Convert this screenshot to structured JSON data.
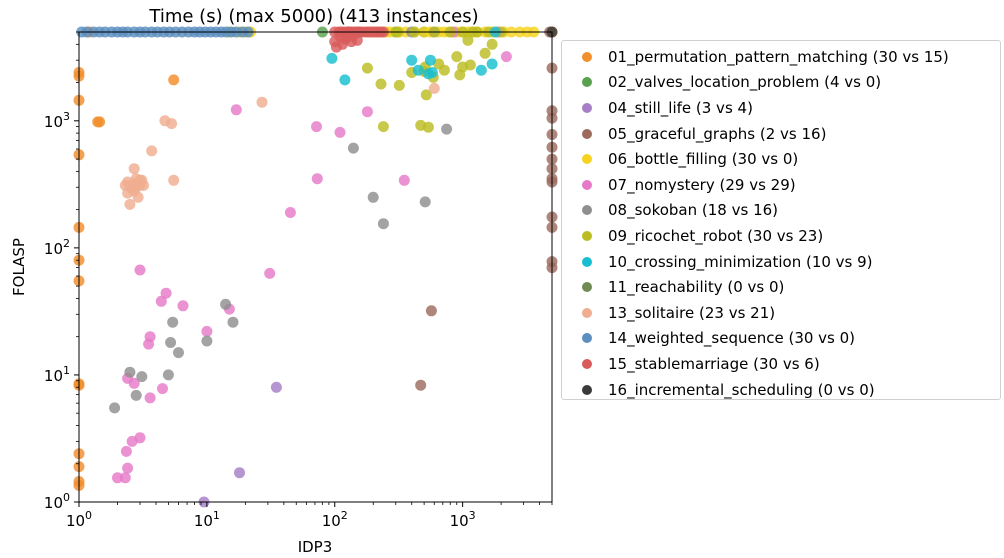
{
  "chart_data": {
    "type": "scatter",
    "title": "Time (s) (max 5000) (413 instances)",
    "xlabel": "IDP3",
    "ylabel": "FOLASP",
    "xscale": "log",
    "yscale": "log",
    "xlim": [
      1,
      5000
    ],
    "ylim": [
      1,
      5000
    ],
    "xticks": [
      {
        "value": 1,
        "base": "10",
        "exp": "0"
      },
      {
        "value": 10,
        "base": "10",
        "exp": "1"
      },
      {
        "value": 100,
        "base": "10",
        "exp": "2"
      },
      {
        "value": 1000,
        "base": "10",
        "exp": "3"
      }
    ],
    "yticks": [
      {
        "value": 1,
        "base": "10",
        "exp": "0"
      },
      {
        "value": 10,
        "base": "10",
        "exp": "1"
      },
      {
        "value": 100,
        "base": "10",
        "exp": "2"
      },
      {
        "value": 1000,
        "base": "10",
        "exp": "3"
      }
    ],
    "legend_position": "outside-right",
    "series": [
      {
        "name": "01_permutation_pattern_matching (30 vs 15)",
        "color": "#f28e2b",
        "points": [
          [
            1,
            2400
          ],
          [
            1,
            2250
          ],
          [
            1,
            1450
          ],
          [
            1,
            540
          ],
          [
            1,
            145
          ],
          [
            1,
            80
          ],
          [
            1,
            55
          ],
          [
            1,
            8.5
          ],
          [
            1,
            8.3
          ],
          [
            1,
            2.4
          ],
          [
            1,
            1.9
          ],
          [
            1,
            1.45
          ],
          [
            1,
            1.35
          ],
          [
            1.2,
            5000
          ],
          [
            1.4,
            980
          ],
          [
            1.45,
            980
          ],
          [
            5.5,
            2100
          ],
          [
            5000,
            5000
          ]
        ]
      },
      {
        "name": "02_valves_location_problem (4 vs 0)",
        "color": "#59a14f",
        "points": [
          [
            80,
            5000
          ],
          [
            130,
            5000
          ],
          [
            300,
            5000
          ],
          [
            500,
            5000
          ]
        ]
      },
      {
        "name": "04_still_life (3 vs 4)",
        "color": "#a67fc7",
        "points": [
          [
            9.5,
            1.0
          ],
          [
            18,
            1.7
          ],
          [
            35,
            8.0
          ]
        ]
      },
      {
        "name": "05_graceful_graphs (2 vs 16)",
        "color": "#9c6b5e",
        "points": [
          [
            470,
            8.3
          ],
          [
            570,
            32
          ],
          [
            5000,
            2600
          ],
          [
            5000,
            1200
          ],
          [
            5000,
            1050
          ],
          [
            5000,
            780
          ],
          [
            5000,
            620
          ],
          [
            5000,
            500
          ],
          [
            5000,
            420
          ],
          [
            5000,
            350
          ],
          [
            5000,
            330
          ],
          [
            5000,
            175
          ],
          [
            5000,
            145
          ],
          [
            5000,
            78
          ],
          [
            5000,
            70
          ],
          [
            4800,
            5000
          ]
        ]
      },
      {
        "name": "06_bottle_filling (30 vs 0)",
        "color": "#f5d31f",
        "points": [
          [
            15,
            5000
          ],
          [
            18,
            5000
          ],
          [
            20,
            5000
          ],
          [
            22,
            5000
          ],
          [
            150,
            5000
          ],
          [
            180,
            5000
          ],
          [
            210,
            5000
          ],
          [
            250,
            5000
          ],
          [
            270,
            5000
          ],
          [
            320,
            5000
          ],
          [
            360,
            5000
          ],
          [
            420,
            5000
          ],
          [
            500,
            5000
          ],
          [
            560,
            5000
          ],
          [
            650,
            5000
          ],
          [
            720,
            5000
          ],
          [
            800,
            5000
          ],
          [
            900,
            5000
          ],
          [
            1000,
            5000
          ],
          [
            1100,
            5000
          ],
          [
            1200,
            5000
          ],
          [
            1300,
            5000
          ],
          [
            1500,
            5000
          ],
          [
            1700,
            5000
          ],
          [
            1900,
            5000
          ],
          [
            2100,
            5000
          ],
          [
            2400,
            5000
          ],
          [
            2800,
            5000
          ],
          [
            3200,
            5000
          ],
          [
            3600,
            5000
          ]
        ]
      },
      {
        "name": "07_nomystery (29 vs 29)",
        "color": "#e67ac8",
        "points": [
          [
            2,
            1.55
          ],
          [
            2.3,
            1.55
          ],
          [
            2.4,
            1.85
          ],
          [
            2.35,
            2.5
          ],
          [
            2.6,
            3.0
          ],
          [
            3,
            3.2
          ],
          [
            2.4,
            9.4
          ],
          [
            2.7,
            8.6
          ],
          [
            3,
            67
          ],
          [
            3.6,
            20
          ],
          [
            3.5,
            17.5
          ],
          [
            3.6,
            6.6
          ],
          [
            4.5,
            7.8
          ],
          [
            4.4,
            38
          ],
          [
            4.8,
            44
          ],
          [
            6.5,
            35
          ],
          [
            10,
            22
          ],
          [
            15,
            33
          ],
          [
            31,
            63
          ],
          [
            45,
            190
          ],
          [
            17,
            1220
          ],
          [
            73,
            350
          ],
          [
            72,
            900
          ],
          [
            110,
            810
          ],
          [
            180,
            1180
          ],
          [
            350,
            340
          ],
          [
            850,
            5000
          ],
          [
            1900,
            5000
          ],
          [
            2200,
            3200
          ]
        ]
      },
      {
        "name": "08_sokoban (18 vs 16)",
        "color": "#8f8f8f",
        "points": [
          [
            1.9,
            5.5
          ],
          [
            2.5,
            10.5
          ],
          [
            2.8,
            6.9
          ],
          [
            3.1,
            9.7
          ],
          [
            5,
            10
          ],
          [
            5.2,
            18
          ],
          [
            5.4,
            26
          ],
          [
            6,
            15
          ],
          [
            10,
            18.5
          ],
          [
            14,
            36
          ],
          [
            16,
            26
          ],
          [
            140,
            610
          ],
          [
            200,
            250
          ],
          [
            240,
            155
          ],
          [
            510,
            230
          ],
          [
            750,
            860
          ],
          [
            400,
            5000
          ],
          [
            600,
            5000
          ]
        ]
      },
      {
        "name": "09_ricochet_robot (30 vs 23)",
        "color": "#bcbd22",
        "points": [
          [
            180,
            2600
          ],
          [
            230,
            1950
          ],
          [
            240,
            900
          ],
          [
            310,
            5000
          ],
          [
            320,
            1900
          ],
          [
            400,
            2400
          ],
          [
            470,
            920
          ],
          [
            500,
            2450
          ],
          [
            510,
            2650
          ],
          [
            520,
            1600
          ],
          [
            540,
            890
          ],
          [
            590,
            2200
          ],
          [
            650,
            2800
          ],
          [
            720,
            2500
          ],
          [
            900,
            3200
          ],
          [
            950,
            2300
          ],
          [
            1000,
            2650
          ],
          [
            1100,
            4300
          ],
          [
            1150,
            2750
          ],
          [
            1300,
            5000
          ],
          [
            1500,
            3400
          ],
          [
            1700,
            4000
          ],
          [
            2000,
            5000
          ],
          [
            300,
            5000
          ],
          [
            420,
            5000
          ],
          [
            600,
            5000
          ],
          [
            800,
            5000
          ],
          [
            1000,
            5000
          ],
          [
            1200,
            5000
          ],
          [
            1600,
            5000
          ]
        ]
      },
      {
        "name": "10_crossing_minimization (10 vs 9)",
        "color": "#17becf",
        "points": [
          [
            95,
            3100
          ],
          [
            120,
            2100
          ],
          [
            400,
            3000
          ],
          [
            450,
            2500
          ],
          [
            540,
            2350
          ],
          [
            560,
            3000
          ],
          [
            580,
            2400
          ],
          [
            1400,
            2500
          ],
          [
            1700,
            2800
          ],
          [
            1800,
            5000
          ]
        ]
      },
      {
        "name": "11_reachability (0 vs 0)",
        "color": "#6f8a52",
        "points": []
      },
      {
        "name": "13_solitaire (23 vs 21)",
        "color": "#f0ad90",
        "points": [
          [
            2.3,
            310
          ],
          [
            2.4,
            270
          ],
          [
            2.4,
            330
          ],
          [
            2.5,
            220
          ],
          [
            2.6,
            290
          ],
          [
            2.7,
            420
          ],
          [
            2.8,
            300
          ],
          [
            2.9,
            250
          ],
          [
            3,
            340
          ],
          [
            3.2,
            310
          ],
          [
            3,
            310
          ],
          [
            3.7,
            580
          ],
          [
            4.7,
            1000
          ],
          [
            5.3,
            950
          ],
          [
            5.5,
            340
          ],
          [
            27,
            1400
          ],
          [
            2.5,
            310
          ],
          [
            2.8,
            350
          ],
          [
            2.7,
            280
          ],
          [
            2.9,
            320
          ],
          [
            600,
            1800
          ],
          [
            3.1,
            340
          ],
          [
            2.7,
            320
          ]
        ]
      },
      {
        "name": "14_weighted_sequence (30 vs 0)",
        "color": "#5b8fbf",
        "points": [
          [
            1.05,
            5000
          ],
          [
            1.15,
            5000
          ],
          [
            1.3,
            5000
          ],
          [
            1.45,
            5000
          ],
          [
            1.6,
            5000
          ],
          [
            1.8,
            5000
          ],
          [
            2,
            5000
          ],
          [
            2.2,
            5000
          ],
          [
            2.4,
            5000
          ],
          [
            2.7,
            5000
          ],
          [
            3,
            5000
          ],
          [
            3.3,
            5000
          ],
          [
            3.7,
            5000
          ],
          [
            4.1,
            5000
          ],
          [
            4.6,
            5000
          ],
          [
            5.1,
            5000
          ],
          [
            5.7,
            5000
          ],
          [
            6.4,
            5000
          ],
          [
            7.2,
            5000
          ],
          [
            8,
            5000
          ],
          [
            8.8,
            5000
          ],
          [
            9.7,
            5000
          ],
          [
            10.7,
            5000
          ],
          [
            11.8,
            5000
          ],
          [
            13,
            5000
          ],
          [
            14.2,
            5000
          ],
          [
            15.5,
            5000
          ],
          [
            17,
            5000
          ],
          [
            19,
            5000
          ],
          [
            21,
            5000
          ]
        ]
      },
      {
        "name": "15_stablemarriage (30 vs 6)",
        "color": "#d95b5b",
        "points": [
          [
            100,
            4200
          ],
          [
            103,
            3800
          ],
          [
            110,
            4600
          ],
          [
            115,
            4000
          ],
          [
            120,
            4400
          ],
          [
            125,
            4500
          ],
          [
            130,
            5000
          ],
          [
            135,
            4200
          ],
          [
            140,
            4700
          ],
          [
            150,
            4300
          ],
          [
            100,
            5000
          ],
          [
            108,
            5000
          ],
          [
            112,
            5000
          ],
          [
            118,
            5000
          ],
          [
            124,
            5000
          ],
          [
            128,
            5000
          ],
          [
            132,
            5000
          ],
          [
            138,
            5000
          ],
          [
            145,
            5000
          ],
          [
            150,
            5000
          ],
          [
            155,
            5000
          ],
          [
            160,
            5000
          ],
          [
            170,
            5000
          ],
          [
            180,
            5000
          ],
          [
            190,
            5000
          ],
          [
            200,
            5000
          ],
          [
            210,
            5000
          ],
          [
            220,
            5000
          ],
          [
            230,
            5000
          ],
          [
            240,
            5000
          ]
        ]
      },
      {
        "name": "16_incremental_scheduling (0 vs 0)",
        "color": "#3a3a3a",
        "points": [
          [
            5000,
            5000
          ]
        ]
      }
    ]
  }
}
